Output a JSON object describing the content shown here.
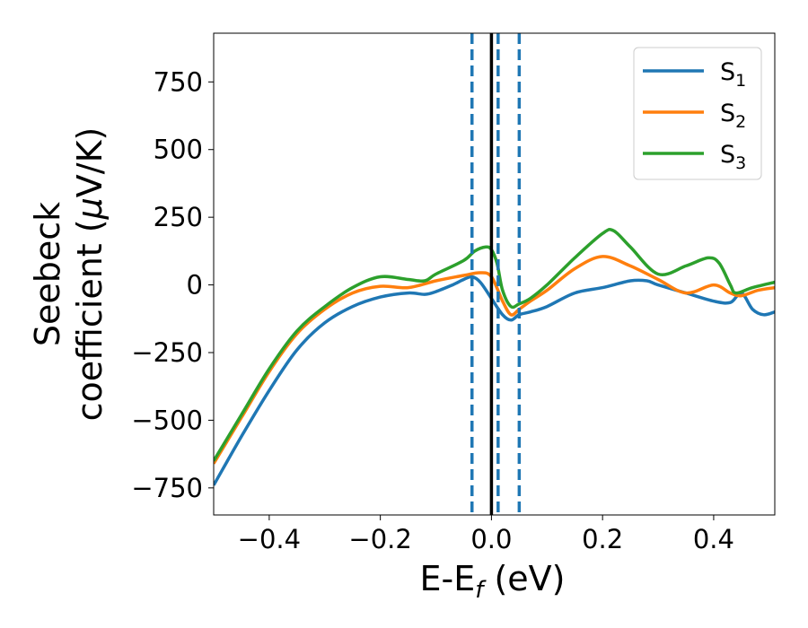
{
  "chart_data": {
    "type": "line",
    "title": "",
    "xlabel": {
      "main": "E-E",
      "sub": "f",
      "unit": " (eV)"
    },
    "ylabel": {
      "line1": "Seebeck",
      "line2": "coefficient  (",
      "mu": "μ",
      "unit": "V/K)"
    },
    "xlim": [
      -0.5,
      0.51
    ],
    "ylim": [
      -850,
      930
    ],
    "xticks": [
      -0.4,
      -0.2,
      0.0,
      0.2,
      0.4
    ],
    "xtick_labels": [
      "−0.4",
      "−0.2",
      "0.0",
      "0.2",
      "0.4"
    ],
    "yticks": [
      750,
      500,
      250,
      0,
      -250,
      -500,
      -750
    ],
    "ytick_labels": [
      "750",
      "500",
      "250",
      "0",
      "−250",
      "−500",
      "−750"
    ],
    "grid": false,
    "legend_position": "top-right",
    "vlines": [
      {
        "x": 0.0,
        "style": "solid",
        "color": "#000000"
      },
      {
        "x": -0.035,
        "style": "dashed",
        "color": "#1f77b4"
      },
      {
        "x": 0.012,
        "style": "dashed",
        "color": "#1f77b4"
      },
      {
        "x": 0.05,
        "style": "dashed",
        "color": "#1f77b4"
      }
    ],
    "series": [
      {
        "name": "S",
        "sub": "1",
        "color": "#1f77b4",
        "points": [
          [
            -0.5,
            -740
          ],
          [
            -0.45,
            -560
          ],
          [
            -0.4,
            -390
          ],
          [
            -0.35,
            -240
          ],
          [
            -0.3,
            -140
          ],
          [
            -0.25,
            -80
          ],
          [
            -0.2,
            -45
          ],
          [
            -0.15,
            -30
          ],
          [
            -0.12,
            -35
          ],
          [
            -0.1,
            -25
          ],
          [
            -0.07,
            0
          ],
          [
            -0.05,
            20
          ],
          [
            -0.035,
            30
          ],
          [
            -0.02,
            10
          ],
          [
            0.0,
            -50
          ],
          [
            0.02,
            -110
          ],
          [
            0.035,
            -130
          ],
          [
            0.05,
            -110
          ],
          [
            0.07,
            -100
          ],
          [
            0.1,
            -80
          ],
          [
            0.15,
            -30
          ],
          [
            0.2,
            -10
          ],
          [
            0.25,
            15
          ],
          [
            0.28,
            15
          ],
          [
            0.3,
            0
          ],
          [
            0.35,
            -30
          ],
          [
            0.4,
            -60
          ],
          [
            0.43,
            -65
          ],
          [
            0.45,
            -30
          ],
          [
            0.47,
            -90
          ],
          [
            0.49,
            -110
          ],
          [
            0.51,
            -100
          ]
        ]
      },
      {
        "name": "S",
        "sub": "2",
        "color": "#ff7f0e",
        "points": [
          [
            -0.5,
            -660
          ],
          [
            -0.45,
            -490
          ],
          [
            -0.4,
            -320
          ],
          [
            -0.35,
            -180
          ],
          [
            -0.3,
            -90
          ],
          [
            -0.25,
            -30
          ],
          [
            -0.2,
            -5
          ],
          [
            -0.15,
            -10
          ],
          [
            -0.1,
            15
          ],
          [
            -0.05,
            35
          ],
          [
            -0.02,
            45
          ],
          [
            0.0,
            30
          ],
          [
            0.02,
            -60
          ],
          [
            0.035,
            -110
          ],
          [
            0.05,
            -90
          ],
          [
            0.07,
            -60
          ],
          [
            0.1,
            -20
          ],
          [
            0.15,
            60
          ],
          [
            0.2,
            105
          ],
          [
            0.25,
            70
          ],
          [
            0.3,
            20
          ],
          [
            0.35,
            -30
          ],
          [
            0.4,
            0
          ],
          [
            0.43,
            -30
          ],
          [
            0.45,
            -40
          ],
          [
            0.48,
            -20
          ],
          [
            0.51,
            -10
          ]
        ]
      },
      {
        "name": "S",
        "sub": "3",
        "color": "#2ca02c",
        "points": [
          [
            -0.5,
            -650
          ],
          [
            -0.45,
            -480
          ],
          [
            -0.4,
            -310
          ],
          [
            -0.35,
            -170
          ],
          [
            -0.3,
            -80
          ],
          [
            -0.25,
            -10
          ],
          [
            -0.2,
            30
          ],
          [
            -0.15,
            20
          ],
          [
            -0.12,
            15
          ],
          [
            -0.1,
            40
          ],
          [
            -0.05,
            90
          ],
          [
            -0.03,
            125
          ],
          [
            -0.01,
            140
          ],
          [
            0.0,
            130
          ],
          [
            0.01,
            80
          ],
          [
            0.02,
            -20
          ],
          [
            0.035,
            -80
          ],
          [
            0.05,
            -70
          ],
          [
            0.07,
            -50
          ],
          [
            0.1,
            0
          ],
          [
            0.15,
            100
          ],
          [
            0.2,
            190
          ],
          [
            0.22,
            200
          ],
          [
            0.25,
            140
          ],
          [
            0.3,
            40
          ],
          [
            0.35,
            70
          ],
          [
            0.39,
            100
          ],
          [
            0.41,
            80
          ],
          [
            0.43,
            0
          ],
          [
            0.44,
            -30
          ],
          [
            0.47,
            -10
          ],
          [
            0.51,
            10
          ]
        ]
      }
    ]
  }
}
